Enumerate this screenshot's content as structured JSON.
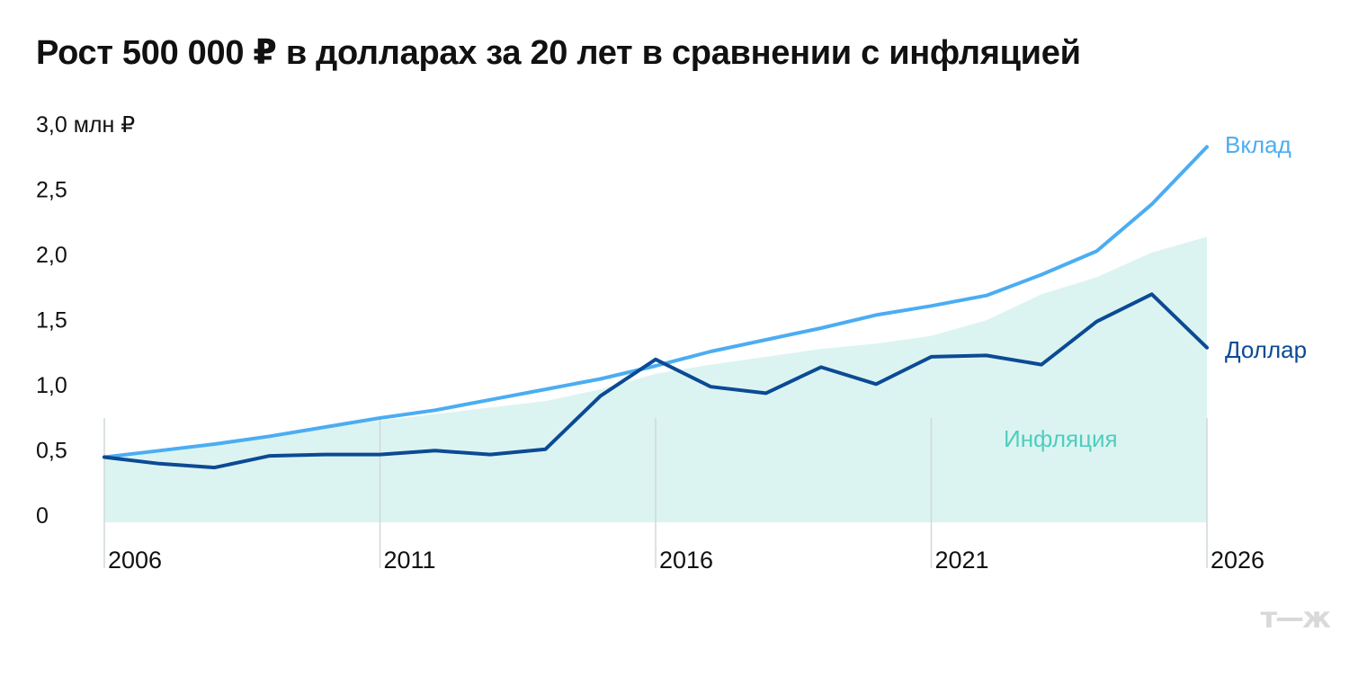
{
  "title": "Рост 500 000 ₽ в долларах за 20 лет в сравнении с инфляцией",
  "logo": "т—ж",
  "chart_data": {
    "type": "line",
    "title": "Рост 500 000 ₽ в долларах за 20 лет в сравнении с инфляцией",
    "xlim": [
      2006,
      2026
    ],
    "ylim": [
      0,
      3.0
    ],
    "yticks": [
      0,
      0.5,
      1.0,
      1.5,
      2.0,
      2.5,
      3.0
    ],
    "ytick_labels": [
      "0",
      "0,5",
      "1,0",
      "1,5",
      "2,0",
      "2,5",
      "3,0 млн ₽"
    ],
    "xticks": [
      2006,
      2011,
      2016,
      2021,
      2026
    ],
    "xtick_labels": [
      "2006",
      "2011",
      "2016",
      "2021",
      "2026"
    ],
    "grid": "vertical",
    "legend": "inline labels at line ends",
    "x": [
      2006,
      2007,
      2008,
      2009,
      2010,
      2011,
      2012,
      2013,
      2014,
      2015,
      2016,
      2017,
      2018,
      2019,
      2020,
      2021,
      2022,
      2023,
      2024,
      2025,
      2026
    ],
    "series": [
      {
        "name": "Инфляция",
        "style": "area",
        "color": "#dcf4f1",
        "label_color": "#4fcdbf",
        "values": [
          0.5,
          0.55,
          0.6,
          0.66,
          0.72,
          0.78,
          0.83,
          0.88,
          0.93,
          1.02,
          1.14,
          1.21,
          1.27,
          1.33,
          1.37,
          1.43,
          1.55,
          1.75,
          1.88,
          2.07,
          2.19
        ]
      },
      {
        "name": "Вклад",
        "style": "line",
        "color": "#4badf2",
        "values": [
          0.5,
          0.55,
          0.6,
          0.66,
          0.73,
          0.8,
          0.86,
          0.94,
          1.02,
          1.1,
          1.2,
          1.31,
          1.4,
          1.49,
          1.59,
          1.66,
          1.74,
          1.9,
          2.08,
          2.44,
          2.88
        ]
      },
      {
        "name": "Доллар",
        "style": "line",
        "color": "#0b4a94",
        "values": [
          0.5,
          0.45,
          0.42,
          0.51,
          0.52,
          0.52,
          0.55,
          0.52,
          0.56,
          0.97,
          1.25,
          1.04,
          0.99,
          1.19,
          1.06,
          1.27,
          1.28,
          1.21,
          1.54,
          1.75,
          1.34
        ]
      }
    ]
  }
}
